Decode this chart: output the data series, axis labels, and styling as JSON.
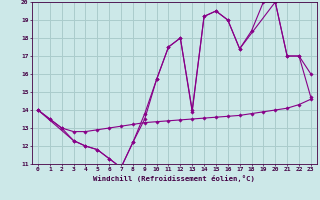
{
  "xlabel": "Windchill (Refroidissement éolien,°C)",
  "background_color": "#cce8e8",
  "grid_color": "#aacccc",
  "line_color": "#880088",
  "xlim": [
    -0.5,
    23.5
  ],
  "ylim": [
    11,
    20
  ],
  "xticks": [
    0,
    1,
    2,
    3,
    4,
    5,
    6,
    7,
    8,
    9,
    10,
    11,
    12,
    13,
    14,
    15,
    16,
    17,
    18,
    19,
    20,
    21,
    22,
    23
  ],
  "yticks": [
    11,
    12,
    13,
    14,
    15,
    16,
    17,
    18,
    19,
    20
  ],
  "series1_x": [
    0,
    1,
    2,
    3,
    4,
    5,
    6,
    7,
    8,
    9,
    10,
    11,
    12,
    13,
    14,
    15,
    16,
    17,
    18,
    19,
    20,
    21,
    22,
    23
  ],
  "series1_y": [
    14.0,
    13.5,
    13.0,
    12.8,
    12.8,
    12.9,
    13.0,
    13.1,
    13.2,
    13.3,
    13.35,
    13.4,
    13.45,
    13.5,
    13.55,
    13.6,
    13.65,
    13.7,
    13.8,
    13.9,
    14.0,
    14.1,
    14.3,
    14.6
  ],
  "series2_x": [
    0,
    1,
    2,
    3,
    4,
    5,
    6,
    7,
    8,
    9,
    10,
    11,
    12,
    13,
    14,
    15,
    16,
    17,
    18,
    19,
    20,
    21,
    22,
    23
  ],
  "series2_y": [
    14.0,
    13.5,
    13.0,
    12.3,
    12.0,
    11.8,
    11.3,
    10.8,
    12.2,
    13.5,
    15.7,
    17.5,
    18.0,
    13.9,
    19.2,
    19.5,
    19.0,
    17.4,
    18.4,
    20.0,
    20.0,
    17.0,
    17.0,
    14.7
  ],
  "series3_x": [
    0,
    3,
    4,
    5,
    6,
    7,
    8,
    9,
    10,
    11,
    12,
    13,
    14,
    15,
    16,
    17,
    20,
    21,
    22,
    23
  ],
  "series3_y": [
    14.0,
    12.3,
    12.0,
    11.8,
    11.3,
    10.8,
    12.2,
    13.8,
    15.7,
    17.5,
    18.0,
    14.0,
    19.2,
    19.5,
    19.0,
    17.4,
    20.0,
    17.0,
    17.0,
    16.0
  ]
}
